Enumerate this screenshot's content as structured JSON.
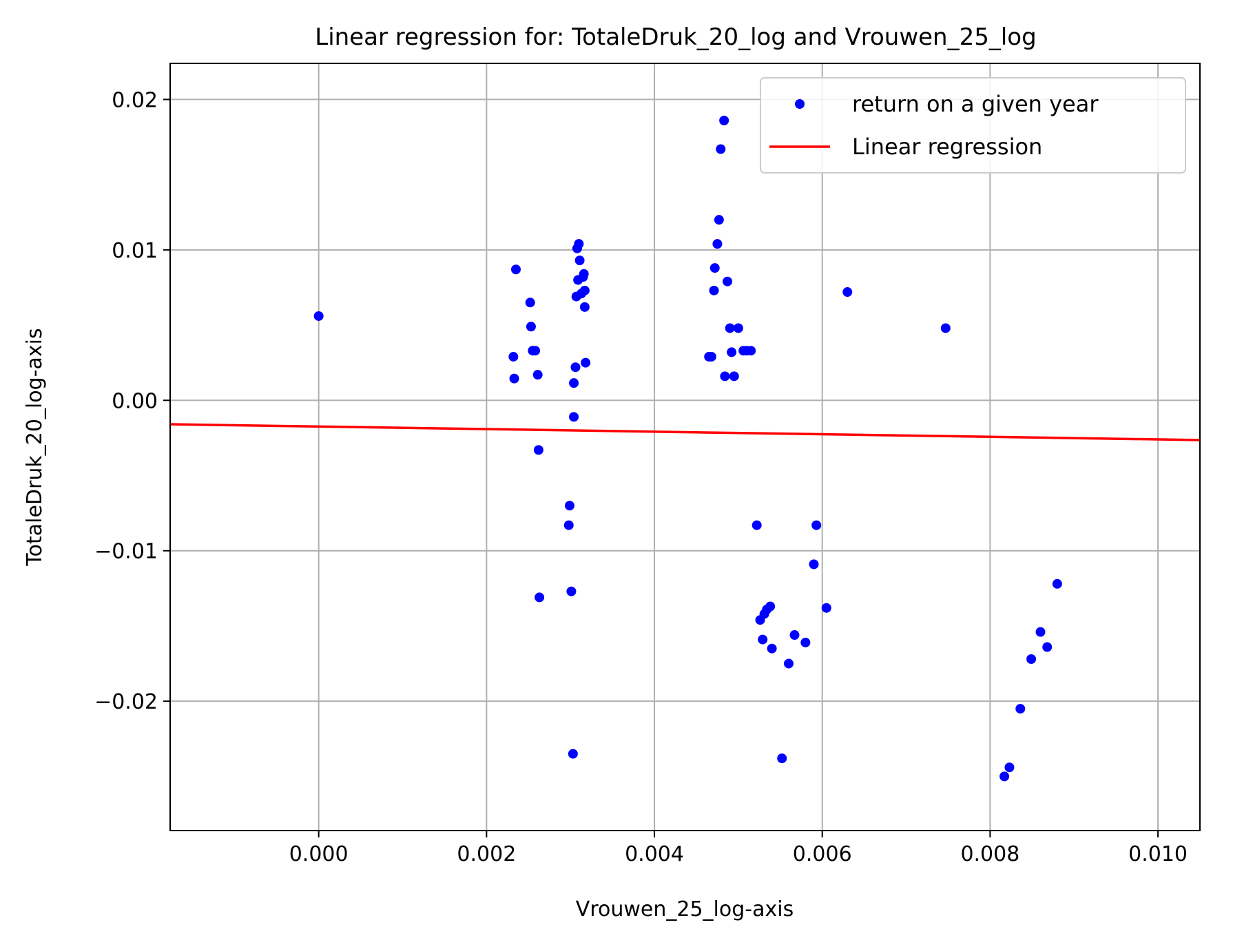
{
  "chart_data": {
    "type": "scatter",
    "title": "Linear regression for: TotaleDruk_20_log and Vrouwen_25_log",
    "xlabel": "Vrouwen_25_log-axis",
    "ylabel": "TotaleDruk_20_log-axis",
    "xlim": [
      -0.00177,
      0.0105
    ],
    "ylim": [
      -0.0286,
      0.0224
    ],
    "xticks": [
      0.0,
      0.002,
      0.004,
      0.006,
      0.008,
      0.01
    ],
    "xtick_labels": [
      "0.000",
      "0.002",
      "0.004",
      "0.006",
      "0.008",
      "0.010"
    ],
    "yticks": [
      0.02,
      0.01,
      0.0,
      -0.01,
      -0.02
    ],
    "ytick_labels": [
      "0.02",
      "0.01",
      "0.00",
      "−0.01",
      "−0.02"
    ],
    "grid": true,
    "legend_position": "top-right",
    "colors": {
      "scatter": "#0000ff",
      "line": "#ff0000",
      "grid": "#b0b0b0"
    },
    "series": [
      {
        "name": "return on a given year",
        "kind": "scatter",
        "points": [
          [
            0.0,
            0.0056
          ],
          [
            0.00232,
            0.0029
          ],
          [
            0.00233,
            0.00145
          ],
          [
            0.00235,
            0.0087
          ],
          [
            0.00252,
            0.0065
          ],
          [
            0.00253,
            0.0049
          ],
          [
            0.00255,
            0.0033
          ],
          [
            0.00258,
            0.0033
          ],
          [
            0.00261,
            0.0017
          ],
          [
            0.00262,
            -0.0033
          ],
          [
            0.00263,
            -0.0131
          ],
          [
            0.00298,
            -0.0083
          ],
          [
            0.00299,
            -0.007
          ],
          [
            0.00301,
            -0.0127
          ],
          [
            0.00303,
            -0.0235
          ],
          [
            0.00304,
            0.00115
          ],
          [
            0.00304,
            -0.0011
          ],
          [
            0.00306,
            0.0022
          ],
          [
            0.00307,
            0.0069
          ],
          [
            0.00308,
            0.0101
          ],
          [
            0.00309,
            0.008
          ],
          [
            0.0031,
            0.0104
          ],
          [
            0.00311,
            0.0093
          ],
          [
            0.00313,
            0.0071
          ],
          [
            0.00315,
            0.0082
          ],
          [
            0.00316,
            0.0084
          ],
          [
            0.00317,
            0.0073
          ],
          [
            0.00317,
            0.0062
          ],
          [
            0.00318,
            0.0025
          ],
          [
            0.00465,
            0.0029
          ],
          [
            0.00468,
            0.0029
          ],
          [
            0.00471,
            0.0073
          ],
          [
            0.00472,
            0.0088
          ],
          [
            0.00475,
            0.0104
          ],
          [
            0.00477,
            0.012
          ],
          [
            0.00479,
            0.0167
          ],
          [
            0.00483,
            0.0186
          ],
          [
            0.00484,
            0.0016
          ],
          [
            0.00487,
            0.0079
          ],
          [
            0.0049,
            0.0048
          ],
          [
            0.00492,
            0.0032
          ],
          [
            0.00495,
            0.0016
          ],
          [
            0.005,
            0.0048
          ],
          [
            0.00506,
            0.0033
          ],
          [
            0.0051,
            0.0033
          ],
          [
            0.00515,
            0.0033
          ],
          [
            0.00522,
            -0.0083
          ],
          [
            0.00526,
            -0.0146
          ],
          [
            0.00529,
            -0.0159
          ],
          [
            0.00531,
            -0.0142
          ],
          [
            0.00534,
            -0.0139
          ],
          [
            0.00538,
            -0.0137
          ],
          [
            0.0054,
            -0.0165
          ],
          [
            0.00552,
            -0.0238
          ],
          [
            0.0056,
            -0.0175
          ],
          [
            0.00567,
            -0.0156
          ],
          [
            0.0058,
            -0.0161
          ],
          [
            0.0059,
            -0.0109
          ],
          [
            0.00593,
            -0.0083
          ],
          [
            0.00605,
            -0.0138
          ],
          [
            0.0063,
            0.0072
          ],
          [
            0.00747,
            0.0048
          ],
          [
            0.00817,
            -0.025
          ],
          [
            0.00823,
            -0.0244
          ],
          [
            0.00836,
            -0.0205
          ],
          [
            0.00849,
            -0.0172
          ],
          [
            0.0086,
            -0.0154
          ],
          [
            0.00868,
            -0.0164
          ],
          [
            0.0088,
            -0.0122
          ]
        ]
      },
      {
        "name": "Linear regression",
        "kind": "line",
        "x": [
          -0.00177,
          0.0105
        ],
        "y": [
          -0.00159,
          -0.00264
        ]
      }
    ]
  }
}
